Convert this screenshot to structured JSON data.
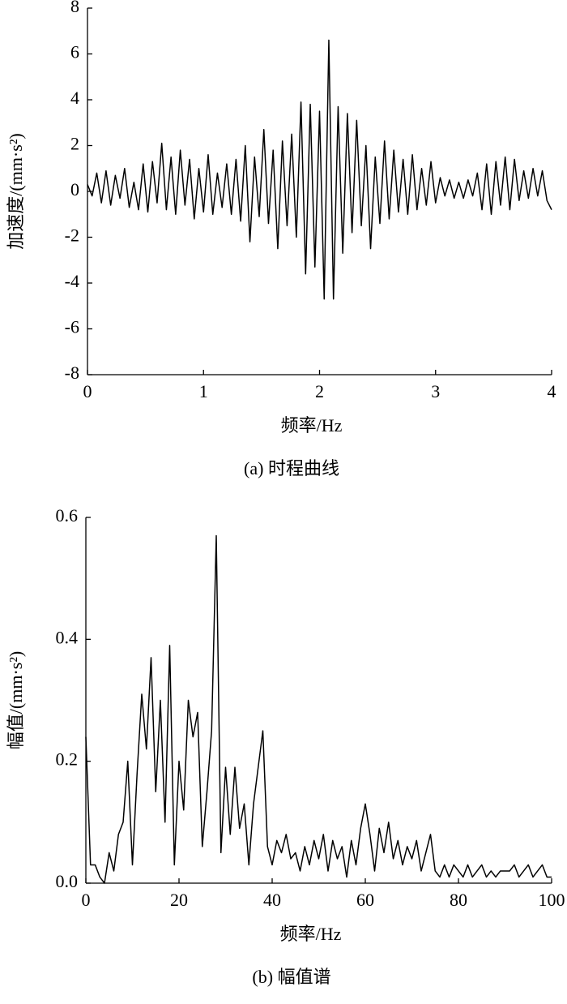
{
  "chart_data": [
    {
      "type": "line",
      "ylabel": "加速度/(mm·s²)",
      "xlabel": "频率/Hz",
      "caption": "(a) 时程曲线",
      "xlim": [
        0,
        4
      ],
      "xticks": [
        0,
        1,
        2,
        3,
        4
      ],
      "ylim": [
        -8,
        8
      ],
      "yticks": [
        -8,
        -6,
        -4,
        -2,
        0,
        2,
        4,
        6,
        8
      ],
      "color": "#000000",
      "x": [
        0,
        0.04,
        0.08,
        0.12,
        0.16,
        0.2,
        0.24,
        0.28,
        0.32,
        0.36,
        0.4,
        0.44,
        0.48,
        0.52,
        0.56,
        0.6,
        0.64,
        0.68,
        0.72,
        0.76,
        0.8,
        0.84,
        0.88,
        0.92,
        0.96,
        1,
        1.04,
        1.08,
        1.12,
        1.16,
        1.2,
        1.24,
        1.28,
        1.32,
        1.36,
        1.4,
        1.44,
        1.48,
        1.52,
        1.56,
        1.6,
        1.64,
        1.68,
        1.72,
        1.76,
        1.8,
        1.84,
        1.88,
        1.92,
        1.96,
        2,
        2.04,
        2.08,
        2.12,
        2.16,
        2.2,
        2.24,
        2.28,
        2.32,
        2.36,
        2.4,
        2.44,
        2.48,
        2.52,
        2.56,
        2.6,
        2.64,
        2.68,
        2.72,
        2.76,
        2.8,
        2.84,
        2.88,
        2.92,
        2.96,
        3,
        3.04,
        3.08,
        3.12,
        3.16,
        3.2,
        3.24,
        3.28,
        3.32,
        3.36,
        3.4,
        3.44,
        3.48,
        3.52,
        3.56,
        3.6,
        3.64,
        3.68,
        3.72,
        3.76,
        3.8,
        3.84,
        3.88,
        3.92,
        3.96,
        4
      ],
      "values": [
        0.3,
        -0.2,
        0.8,
        -0.5,
        0.9,
        -0.6,
        0.7,
        -0.3,
        1.0,
        -0.7,
        0.4,
        -0.8,
        1.2,
        -0.9,
        1.3,
        -0.5,
        2.1,
        -0.8,
        1.5,
        -1.0,
        1.8,
        -0.6,
        1.4,
        -1.2,
        1.0,
        -0.9,
        1.6,
        -1.0,
        0.8,
        -0.7,
        1.2,
        -1.0,
        1.4,
        -1.3,
        2.0,
        -2.2,
        1.5,
        -1.1,
        2.7,
        -1.4,
        1.8,
        -2.5,
        2.2,
        -1.5,
        2.5,
        -2.0,
        3.9,
        -3.6,
        3.8,
        -3.3,
        3.5,
        -4.7,
        6.6,
        -4.7,
        3.7,
        -2.7,
        3.4,
        -1.8,
        3.1,
        -1.5,
        2.0,
        -2.5,
        1.5,
        -1.4,
        2.2,
        -1.2,
        1.8,
        -0.9,
        1.4,
        -1.0,
        1.6,
        -0.8,
        1.0,
        -0.6,
        1.3,
        -0.5,
        0.6,
        -0.2,
        0.5,
        -0.3,
        0.4,
        -0.3,
        0.5,
        -0.2,
        0.8,
        -0.8,
        1.2,
        -1.0,
        1.3,
        -0.6,
        1.5,
        -0.8,
        1.4,
        -0.4,
        0.9,
        -0.3,
        1.0,
        -0.2,
        0.9,
        -0.4,
        -0.8
      ]
    },
    {
      "type": "line",
      "ylabel": "幅值/(mm·s²)",
      "xlabel": "频率/Hz",
      "caption": "(b) 幅值谱",
      "xlim": [
        0,
        100
      ],
      "xticks": [
        0,
        20,
        40,
        60,
        80,
        100
      ],
      "ylim": [
        0,
        0.6
      ],
      "yticks": [
        {
          "value": 0,
          "label": "0.0"
        },
        0.2,
        0.4,
        0.6
      ],
      "color": "#000000",
      "x": [
        0,
        1,
        2,
        3,
        4,
        5,
        6,
        7,
        8,
        9,
        10,
        11,
        12,
        13,
        14,
        15,
        16,
        17,
        18,
        19,
        20,
        21,
        22,
        23,
        24,
        25,
        26,
        27,
        28,
        29,
        30,
        31,
        32,
        33,
        34,
        35,
        36,
        37,
        38,
        39,
        40,
        41,
        42,
        43,
        44,
        45,
        46,
        47,
        48,
        49,
        50,
        51,
        52,
        53,
        54,
        55,
        56,
        57,
        58,
        59,
        60,
        61,
        62,
        63,
        64,
        65,
        66,
        67,
        68,
        69,
        70,
        71,
        72,
        73,
        74,
        75,
        76,
        77,
        78,
        79,
        80,
        81,
        82,
        83,
        84,
        85,
        86,
        87,
        88,
        89,
        90,
        91,
        92,
        93,
        94,
        95,
        96,
        97,
        98,
        99,
        100
      ],
      "values": [
        0.24,
        0.03,
        0.03,
        0.01,
        0.0,
        0.05,
        0.02,
        0.08,
        0.1,
        0.2,
        0.03,
        0.18,
        0.31,
        0.22,
        0.37,
        0.15,
        0.3,
        0.1,
        0.39,
        0.03,
        0.2,
        0.12,
        0.3,
        0.24,
        0.28,
        0.06,
        0.15,
        0.25,
        0.57,
        0.05,
        0.19,
        0.08,
        0.19,
        0.09,
        0.13,
        0.03,
        0.13,
        0.19,
        0.25,
        0.06,
        0.03,
        0.07,
        0.05,
        0.08,
        0.04,
        0.05,
        0.02,
        0.06,
        0.03,
        0.07,
        0.04,
        0.08,
        0.02,
        0.07,
        0.04,
        0.06,
        0.01,
        0.07,
        0.03,
        0.09,
        0.13,
        0.08,
        0.02,
        0.09,
        0.05,
        0.1,
        0.04,
        0.07,
        0.03,
        0.06,
        0.04,
        0.07,
        0.02,
        0.05,
        0.08,
        0.02,
        0.01,
        0.03,
        0.01,
        0.03,
        0.02,
        0.01,
        0.03,
        0.01,
        0.02,
        0.03,
        0.01,
        0.02,
        0.01,
        0.02,
        0.02,
        0.02,
        0.03,
        0.01,
        0.02,
        0.03,
        0.01,
        0.02,
        0.03,
        0.01,
        0.01
      ]
    }
  ]
}
